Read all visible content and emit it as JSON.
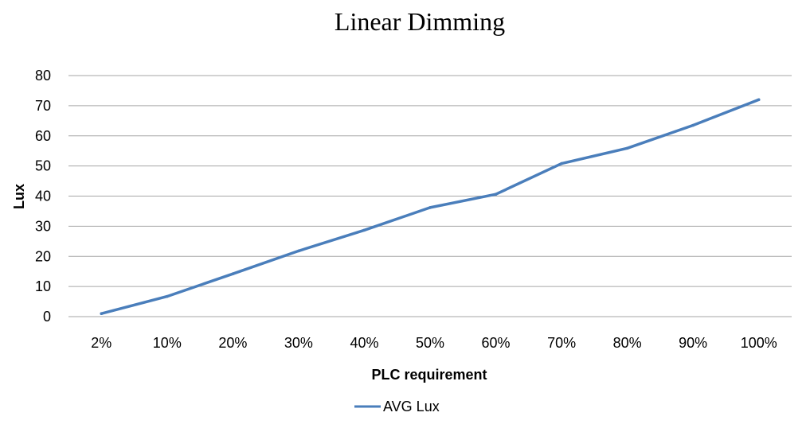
{
  "chart_data": {
    "type": "line",
    "title": "Linear Dimming",
    "xlabel": "PLC requirement",
    "ylabel": "Lux",
    "categories": [
      "2%",
      "10%",
      "20%",
      "30%",
      "40%",
      "50%",
      "60%",
      "70%",
      "80%",
      "90%",
      "100%"
    ],
    "ylim": [
      0,
      80
    ],
    "yticks": [
      0,
      10,
      20,
      30,
      40,
      50,
      60,
      70,
      80
    ],
    "grid": true,
    "legend_position": "bottom",
    "series": [
      {
        "name": "AVG Lux",
        "color": "#4a7ebb",
        "values": [
          1,
          6.7,
          14.2,
          21.8,
          28.7,
          36.2,
          40.6,
          50.8,
          55.9,
          63.5,
          72
        ]
      }
    ]
  }
}
